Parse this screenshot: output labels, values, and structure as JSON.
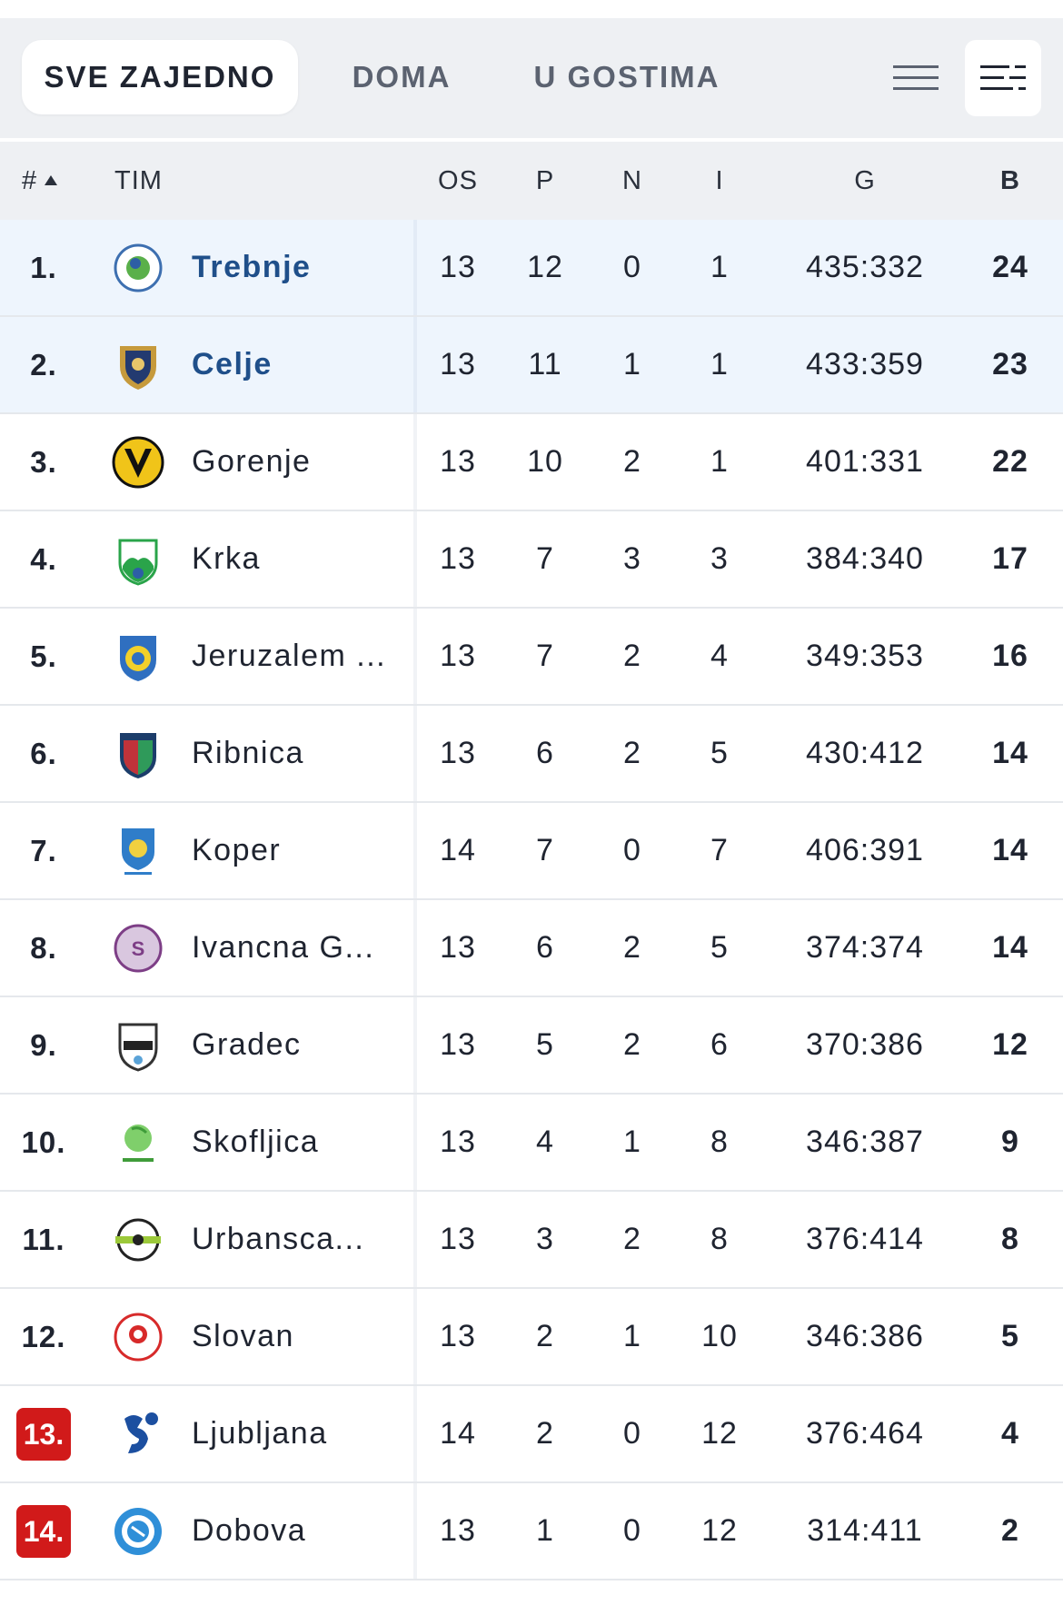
{
  "tabs": {
    "all": "SVE ZAJEDNO",
    "home": "DOMA",
    "away": "U GOSTIMA",
    "active": "all"
  },
  "view_toggle": {
    "compact_icon": "lines-icon",
    "detailed_icon": "list-detailed-icon",
    "active": "detailed"
  },
  "columns": {
    "rank": "#",
    "team": "TIM",
    "played": "OS",
    "won": "P",
    "drawn": "N",
    "lost": "I",
    "goals": "G",
    "points": "B",
    "sort": "ascending"
  },
  "colors": {
    "highlight_row": "#eef5fd",
    "highlight_name": "#1f4f8a",
    "relegation_badge": "#d11a1a"
  },
  "rows": [
    {
      "rank": "1.",
      "team": "Trebnje",
      "os": "13",
      "p": "12",
      "n": "0",
      "i": "1",
      "g": "435:332",
      "b": "24",
      "highlight": true,
      "relegation": false,
      "logo": "trebnje-logo"
    },
    {
      "rank": "2.",
      "team": "Celje",
      "os": "13",
      "p": "11",
      "n": "1",
      "i": "1",
      "g": "433:359",
      "b": "23",
      "highlight": true,
      "relegation": false,
      "logo": "celje-logo"
    },
    {
      "rank": "3.",
      "team": "Gorenje",
      "os": "13",
      "p": "10",
      "n": "2",
      "i": "1",
      "g": "401:331",
      "b": "22",
      "highlight": false,
      "relegation": false,
      "logo": "gorenje-logo"
    },
    {
      "rank": "4.",
      "team": "Krka",
      "os": "13",
      "p": "7",
      "n": "3",
      "i": "3",
      "g": "384:340",
      "b": "17",
      "highlight": false,
      "relegation": false,
      "logo": "krka-logo"
    },
    {
      "rank": "5.",
      "team": "Jeruzalem ...",
      "os": "13",
      "p": "7",
      "n": "2",
      "i": "4",
      "g": "349:353",
      "b": "16",
      "highlight": false,
      "relegation": false,
      "logo": "jeruzalem-logo"
    },
    {
      "rank": "6.",
      "team": "Ribnica",
      "os": "13",
      "p": "6",
      "n": "2",
      "i": "5",
      "g": "430:412",
      "b": "14",
      "highlight": false,
      "relegation": false,
      "logo": "ribnica-logo"
    },
    {
      "rank": "7.",
      "team": "Koper",
      "os": "14",
      "p": "7",
      "n": "0",
      "i": "7",
      "g": "406:391",
      "b": "14",
      "highlight": false,
      "relegation": false,
      "logo": "koper-logo"
    },
    {
      "rank": "8.",
      "team": "Ivancna G...",
      "os": "13",
      "p": "6",
      "n": "2",
      "i": "5",
      "g": "374:374",
      "b": "14",
      "highlight": false,
      "relegation": false,
      "logo": "ivancna-logo"
    },
    {
      "rank": "9.",
      "team": "Gradec",
      "os": "13",
      "p": "5",
      "n": "2",
      "i": "6",
      "g": "370:386",
      "b": "12",
      "highlight": false,
      "relegation": false,
      "logo": "gradec-logo"
    },
    {
      "rank": "10.",
      "team": "Skofljica",
      "os": "13",
      "p": "4",
      "n": "1",
      "i": "8",
      "g": "346:387",
      "b": "9",
      "highlight": false,
      "relegation": false,
      "logo": "skofljica-logo"
    },
    {
      "rank": "11.",
      "team": "Urbansca...",
      "os": "13",
      "p": "3",
      "n": "2",
      "i": "8",
      "g": "376:414",
      "b": "8",
      "highlight": false,
      "relegation": false,
      "logo": "urbanscape-logo"
    },
    {
      "rank": "12.",
      "team": "Slovan",
      "os": "13",
      "p": "2",
      "n": "1",
      "i": "10",
      "g": "346:386",
      "b": "5",
      "highlight": false,
      "relegation": false,
      "logo": "slovan-logo"
    },
    {
      "rank": "13.",
      "team": "Ljubljana",
      "os": "14",
      "p": "2",
      "n": "0",
      "i": "12",
      "g": "376:464",
      "b": "4",
      "highlight": false,
      "relegation": true,
      "logo": "ljubljana-logo"
    },
    {
      "rank": "14.",
      "team": "Dobova",
      "os": "13",
      "p": "1",
      "n": "0",
      "i": "12",
      "g": "314:411",
      "b": "2",
      "highlight": false,
      "relegation": true,
      "logo": "dobova-logo"
    }
  ]
}
